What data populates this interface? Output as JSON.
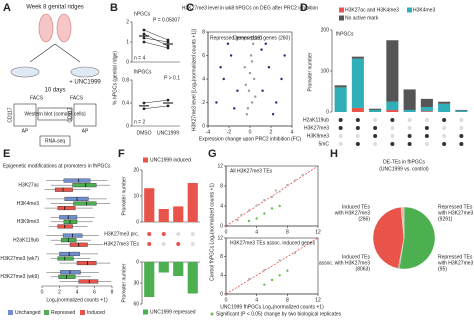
{
  "diagram": {
    "label": "A",
    "title": "Week 8 genital ridges",
    "treatment": "+ UNC1999",
    "duration": "10 days",
    "sort_left": "FACS",
    "sort_right": "FACS",
    "marker_left": "CD117",
    "marker_left2": "AP",
    "marker_right": "CD117",
    "marker_right2": "AP",
    "assay1": "Western blot (somatic cells)",
    "assay2": "RNA-seq"
  },
  "chart_data": [
    {
      "type": "paired",
      "label": "B",
      "title": "hPGCs",
      "annotation": "P = 0.05007",
      "n_label": "n = 4",
      "ylabel": "% hPGCs (genital ridge)",
      "ylim": [
        0,
        2
      ],
      "yticks": [
        0,
        1,
        2
      ],
      "means": [
        1.3,
        0.9
      ],
      "color": "#222",
      "series": [
        {
          "values": [
            1.6,
            1.1
          ]
        },
        {
          "values": [
            1.4,
            0.8
          ]
        },
        {
          "values": [
            1.2,
            1.0
          ]
        },
        {
          "values": [
            1.0,
            0.7
          ]
        }
      ]
    },
    {
      "type": "paired",
      "title": "fhPGCs",
      "annotation": "P > 0.1",
      "n_label": "n = 2",
      "categories": [
        "DMSO",
        "UNC1999"
      ],
      "ylim": [
        0,
        0.8
      ],
      "yticks": [
        0,
        0.4,
        0.8
      ],
      "means": [
        0.35,
        0.4
      ],
      "color": "#222",
      "series": [
        {
          "values": [
            0.3,
            0.35
          ]
        },
        {
          "values": [
            0.4,
            0.45
          ]
        }
      ]
    },
    {
      "type": "scatter",
      "label": "C",
      "title": "H3K27me3 level in wk8 hPGCs on DEG after PRC2 inhibition",
      "xlabel": "Expression change upon PRC2 inhibition (FC)",
      "ylabel": "H3K27me3 level [Log₂(normalized counts +1)]",
      "annotations": [
        "Repressed genes (113)",
        "Derepressed genes (260)"
      ],
      "xlim": [
        -4,
        4
      ],
      "xticks": [
        -4,
        -2,
        0,
        2,
        4
      ],
      "ylim": [
        0,
        8
      ],
      "yticks": [
        0,
        2,
        4,
        6,
        8
      ],
      "series": [
        {
          "color": "#9a9a9a",
          "x": [
            -0.3,
            0.2,
            -0.1,
            0.4,
            -0.5,
            0.1,
            0.3,
            -0.2,
            0.5,
            -0.4,
            0.0,
            0.2
          ],
          "values": [
            1,
            2,
            3,
            4,
            5,
            6,
            7,
            1.5,
            2.5,
            3.5,
            4.5,
            5.5
          ]
        },
        {
          "color": "#1f2f7a",
          "x": [
            -3.2,
            -2.5,
            -1.8,
            -1.2,
            -2.8,
            -1.5,
            -2.1
          ],
          "values": [
            2,
            4,
            6,
            3,
            5,
            1.5,
            7
          ]
        },
        {
          "color": "#1f2f7a",
          "x": [
            1.2,
            1.8,
            2.5,
            3.3,
            1.5,
            2.2,
            3.0,
            1.1
          ],
          "values": [
            3,
            5,
            2,
            6,
            7,
            1,
            4,
            6.5
          ]
        }
      ]
    },
    {
      "type": "upset",
      "label": "D",
      "title": "fhPGCs",
      "ylabel": "Promoter number",
      "ylim": [
        0,
        200
      ],
      "yticks": [
        0,
        100,
        200
      ],
      "series": [
        {
          "name": "H3K27ac and H3K4me3",
          "color": "#e8534a",
          "values": [
            0,
            10,
            0,
            5,
            0,
            2,
            0,
            0
          ]
        },
        {
          "name": "H3K4me3",
          "color": "#2fb0b8",
          "values": [
            60,
            120,
            5,
            20,
            5,
            10,
            20,
            3
          ]
        },
        {
          "name": "No active mark",
          "color": "#555555",
          "values": [
            5,
            5,
            3,
            150,
            50,
            20,
            5,
            2
          ]
        }
      ],
      "matrix_rows": [
        "H2aK119ub",
        "H3K27me3",
        "H3K9me3",
        "5mC"
      ],
      "matrix": [
        [
          1,
          1,
          0,
          1,
          0,
          0,
          1,
          0
        ],
        [
          1,
          1,
          1,
          0,
          0,
          1,
          0,
          0
        ],
        [
          0,
          0,
          1,
          0,
          1,
          1,
          0,
          1
        ],
        [
          0,
          1,
          0,
          1,
          1,
          0,
          1,
          1
        ]
      ]
    },
    {
      "type": "boxplot",
      "label": "E",
      "title": "Epigenetic modifications at promoters in fhPGCs",
      "xlabel": "Log₂(normalized counts +1)",
      "categories": [
        "H3K27ac",
        "H3K4me3",
        "H3K9me3",
        "H2aK119ub",
        "H3K27me3 (wk7)",
        "H3K27me3 (wk9)"
      ],
      "xlim": [
        0,
        8
      ],
      "xticks": [
        0,
        2,
        4,
        6,
        8
      ],
      "series": [
        {
          "name": "Unchanged",
          "color": "#6f8fd0",
          "lo": [
            0.5,
            0.5,
            1,
            0.5,
            0.5,
            0.5
          ],
          "q1": [
            2.5,
            2.6,
            2,
            2.4,
            2,
            2.1
          ],
          "median": [
            4.2,
            4.0,
            3,
            3.5,
            3.1,
            3.2
          ],
          "q3": [
            5.5,
            5.3,
            4,
            4.6,
            4.3,
            4.4
          ],
          "hi": [
            7.5,
            7.4,
            6,
            6.5,
            6.4,
            6.5
          ]
        },
        {
          "name": "Repressed",
          "color": "#4caf50",
          "lo": [
            1,
            1,
            1,
            1,
            1,
            1
          ],
          "q1": [
            3.5,
            3.6,
            2.5,
            2.2,
            1.8,
            1.9
          ],
          "median": [
            5,
            5.1,
            3.2,
            3.0,
            2.6,
            2.8
          ],
          "q3": [
            6.2,
            6.2,
            4,
            3.9,
            3.6,
            3.8
          ],
          "hi": [
            7.8,
            7.8,
            5.8,
            5.6,
            5.5,
            5.6
          ]
        },
        {
          "name": "Induced",
          "color": "#e8534a",
          "lo": [
            0.3,
            0.3,
            0.8,
            1.5,
            2,
            2
          ],
          "q1": [
            1.5,
            1.8,
            1.8,
            3.2,
            4,
            4.2
          ],
          "median": [
            2.4,
            2.6,
            2.6,
            4.2,
            5.2,
            5.4
          ],
          "q3": [
            3.5,
            3.8,
            3.5,
            5.2,
            6.2,
            6.4
          ],
          "hi": [
            5.5,
            5.8,
            5.2,
            7,
            7.8,
            7.9
          ]
        }
      ]
    },
    {
      "type": "bar",
      "label": "F",
      "title": "UNC1999 induced",
      "ylabel": "Promoter number",
      "values": [
        13,
        5,
        6,
        15
      ],
      "color": "#e8534a",
      "ylim": [
        0,
        20
      ],
      "yticks": [
        0,
        10,
        20
      ],
      "matrix_rows": [
        "H3K27me3 prc.",
        "H3K27me3 TEs"
      ],
      "matrix": [
        [
          1,
          1,
          0,
          0
        ],
        [
          1,
          0,
          1,
          0
        ]
      ]
    },
    {
      "type": "bar",
      "title": "UNC1999 repressed",
      "ylabel": "Promoter number",
      "values": [
        50,
        15,
        20,
        45
      ],
      "color": "#4caf50",
      "ylim": [
        0,
        60
      ],
      "yticks": [
        0,
        30,
        60
      ],
      "inverted": true
    },
    {
      "type": "scatter",
      "label": "G",
      "title": "All H3K27me3 TEs",
      "ylabel": "Control fhPGCs Log₂(normalized counts +1)",
      "diagonal": true,
      "xlim": [
        0,
        12
      ],
      "xticks": [
        0,
        4,
        8,
        12
      ],
      "ylim": [
        0,
        12
      ],
      "yticks": [
        0,
        4,
        8,
        12
      ],
      "series": [
        {
          "color": "#b5b5b5",
          "x": [
            2,
            4,
            6,
            8,
            3,
            5,
            7,
            9,
            10,
            1.5,
            6.5
          ],
          "values": [
            2.2,
            4.1,
            5.8,
            8.2,
            3.1,
            5.2,
            6.9,
            9.1,
            10.2,
            1.2,
            7.1
          ]
        },
        {
          "color": "#6cc04a",
          "x": [
            5,
            6,
            7,
            4,
            3
          ],
          "values": [
            2.5,
            3.5,
            4,
            1.5,
            1.0
          ]
        }
      ]
    },
    {
      "type": "scatter",
      "title": "H3K27me3 TEs assoc. induced genes",
      "xlabel": "UNC1999 fhPGCs Log₂(normalized counts +1)",
      "diagonal": true,
      "xlim": [
        0,
        12
      ],
      "xticks": [
        0,
        4,
        8,
        12
      ],
      "ylim": [
        0,
        12
      ],
      "yticks": [
        0,
        4,
        8,
        12
      ],
      "series": [
        {
          "name": "Significant (P < 0.05) change by two biological replicates",
          "color": "#6cc04a",
          "x": [
            6,
            7,
            8,
            5
          ],
          "values": [
            3,
            4,
            5,
            2
          ]
        },
        {
          "color": "#b5b5b5",
          "x": [
            3,
            5,
            7,
            9
          ],
          "values": [
            3.2,
            5.1,
            7.2,
            8.8
          ]
        }
      ]
    },
    {
      "type": "pie",
      "label": "H",
      "title": "DE-TEs in fhPGCs",
      "subtitle": "(UNC1999 vs. control)",
      "categories": [
        [
          "Repressed TEs",
          "with H3K27me3"
        ],
        [
          "Repressed TEs",
          "with H3K27me3"
        ],
        [
          "Induced TEs",
          "assoc. with H3K27me3"
        ],
        [
          "Induced TEs",
          "with H3K27me3"
        ]
      ],
      "values": [
        9291,
        95,
        8063,
        266
      ],
      "value_labels": [
        "(9291)",
        "(95)",
        "(8063)",
        "(266)"
      ],
      "colors": [
        "#4caf50",
        "#1e7b34",
        "#e8534a",
        "#f4a7a0"
      ]
    }
  ]
}
